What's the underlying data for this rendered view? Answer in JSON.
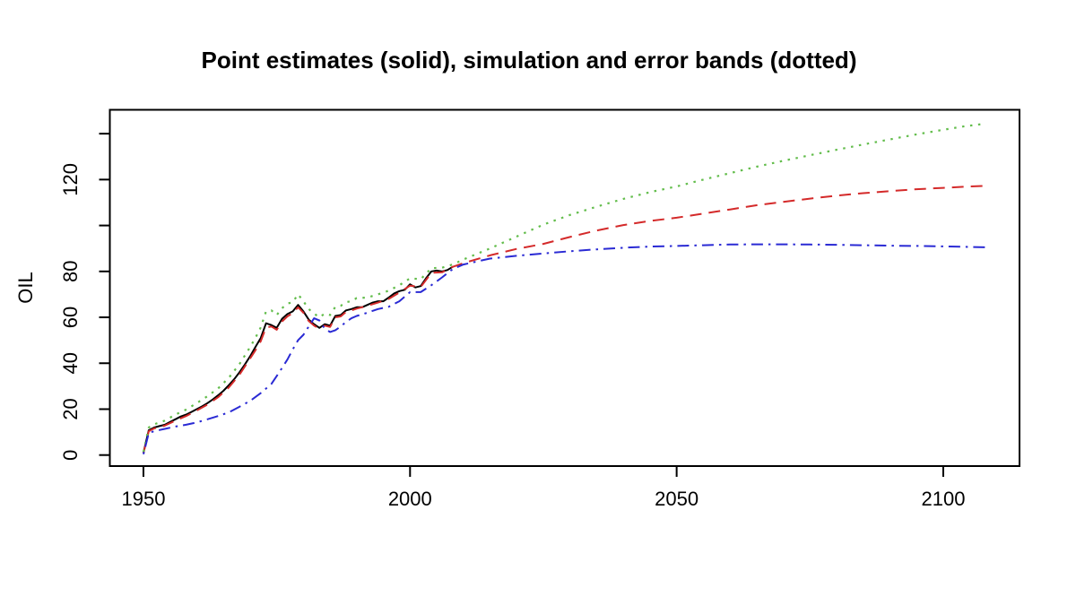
{
  "chart_data": {
    "type": "line",
    "title": "Point estimates (solid), simulation and error bands (dotted)",
    "xlabel": "",
    "ylabel": "OIL",
    "xlim": [
      1943.7,
      2114.3
    ],
    "ylim": [
      -4.8,
      150.4
    ],
    "x_ticks": [
      1950,
      2000,
      2050,
      2100
    ],
    "x_tick_labels": [
      "1950",
      "2000",
      "2050",
      "2100"
    ],
    "y_ticks": [
      0,
      20,
      40,
      60,
      80,
      100,
      120,
      140
    ],
    "y_tick_labels": [
      "0",
      "20",
      "40",
      "60",
      "80",
      "",
      "120",
      ""
    ],
    "grid": false,
    "legend_position": "none",
    "background": "#ffffff",
    "axis_color": "#000000",
    "series": [
      {
        "name": "point-estimates-historical",
        "label": "Point estimates (solid)",
        "style": "solid",
        "color": "#000000",
        "points": [
          [
            1950,
            1
          ],
          [
            1951,
            10.8
          ],
          [
            1952,
            12
          ],
          [
            1953,
            12.6
          ],
          [
            1954,
            13.2
          ],
          [
            1955,
            14.4
          ],
          [
            1956,
            15.6
          ],
          [
            1957,
            16.8
          ],
          [
            1958,
            17.6
          ],
          [
            1959,
            18.8
          ],
          [
            1960,
            20
          ],
          [
            1961,
            21.2
          ],
          [
            1962,
            22.6
          ],
          [
            1963,
            24.2
          ],
          [
            1964,
            26
          ],
          [
            1965,
            28
          ],
          [
            1966,
            30.4
          ],
          [
            1967,
            33
          ],
          [
            1968,
            36
          ],
          [
            1969,
            39.4
          ],
          [
            1970,
            43
          ],
          [
            1971,
            47
          ],
          [
            1972,
            51
          ],
          [
            1973,
            57.4
          ],
          [
            1974,
            56.6
          ],
          [
            1975,
            55.4
          ],
          [
            1976,
            59.4
          ],
          [
            1977,
            61.4
          ],
          [
            1978,
            62.6
          ],
          [
            1979,
            65.4
          ],
          [
            1980,
            62.6
          ],
          [
            1981,
            59
          ],
          [
            1982,
            57
          ],
          [
            1983,
            55.4
          ],
          [
            1984,
            57
          ],
          [
            1985,
            56.4
          ],
          [
            1986,
            60.6
          ],
          [
            1987,
            61
          ],
          [
            1988,
            63
          ],
          [
            1989,
            63.6
          ],
          [
            1990,
            64.4
          ],
          [
            1991,
            64.4
          ],
          [
            1992,
            65.4
          ],
          [
            1993,
            66.4
          ],
          [
            1994,
            67
          ],
          [
            1995,
            67
          ],
          [
            1996,
            68.6
          ],
          [
            1997,
            70.4
          ],
          [
            1998,
            71.4
          ],
          [
            1999,
            72
          ],
          [
            2000,
            74.4
          ],
          [
            2001,
            73
          ],
          [
            2002,
            73.6
          ],
          [
            2003,
            77
          ],
          [
            2004,
            80
          ],
          [
            2005,
            80.4
          ],
          [
            2006,
            80
          ],
          [
            2007,
            80.6
          ],
          [
            2008,
            82
          ]
        ]
      },
      {
        "name": "simulation-median",
        "label": "simulation (dashed red)",
        "style": "dashed",
        "color": "#d42a2a",
        "points": [
          [
            1950,
            0.8
          ],
          [
            1951,
            10.4
          ],
          [
            1952,
            11.6
          ],
          [
            1954,
            12.8
          ],
          [
            1956,
            15
          ],
          [
            1958,
            17
          ],
          [
            1960,
            19.4
          ],
          [
            1962,
            22
          ],
          [
            1964,
            25.2
          ],
          [
            1966,
            29.4
          ],
          [
            1968,
            35
          ],
          [
            1970,
            42
          ],
          [
            1971,
            45.6
          ],
          [
            1972,
            49.6
          ],
          [
            1973,
            55.6
          ],
          [
            1974,
            56
          ],
          [
            1975,
            54.6
          ],
          [
            1976,
            58.2
          ],
          [
            1977,
            60.4
          ],
          [
            1978,
            61.8
          ],
          [
            1979,
            64.4
          ],
          [
            1980,
            62
          ],
          [
            1981,
            58.4
          ],
          [
            1982,
            56.4
          ],
          [
            1983,
            55
          ],
          [
            1984,
            56.4
          ],
          [
            1985,
            55.8
          ],
          [
            1986,
            60
          ],
          [
            1987,
            60.4
          ],
          [
            1988,
            62.4
          ],
          [
            1989,
            63
          ],
          [
            1990,
            63.8
          ],
          [
            1992,
            65
          ],
          [
            1994,
            66.4
          ],
          [
            1996,
            68
          ],
          [
            1998,
            70.8
          ],
          [
            2000,
            73.8
          ],
          [
            2002,
            73.2
          ],
          [
            2004,
            79.4
          ],
          [
            2006,
            79.6
          ],
          [
            2008,
            82
          ],
          [
            2010,
            83.6
          ],
          [
            2015,
            87
          ],
          [
            2020,
            89.8
          ],
          [
            2025,
            92
          ],
          [
            2030,
            95
          ],
          [
            2035,
            97.8
          ],
          [
            2040,
            100.2
          ],
          [
            2045,
            102
          ],
          [
            2050,
            103.4
          ],
          [
            2055,
            105.2
          ],
          [
            2060,
            107
          ],
          [
            2065,
            108.8
          ],
          [
            2070,
            110.3
          ],
          [
            2075,
            111.7
          ],
          [
            2080,
            113
          ],
          [
            2085,
            114.1
          ],
          [
            2090,
            115
          ],
          [
            2095,
            115.8
          ],
          [
            2100,
            116.4
          ],
          [
            2104,
            116.9
          ],
          [
            2108,
            117.3
          ]
        ]
      },
      {
        "name": "upper-error-band",
        "label": "upper error band (dotted green)",
        "style": "dotted",
        "color": "#63bd4c",
        "points": [
          [
            1950,
            1.4
          ],
          [
            1951,
            12
          ],
          [
            1952,
            13.4
          ],
          [
            1954,
            15
          ],
          [
            1956,
            17.6
          ],
          [
            1958,
            19.8
          ],
          [
            1960,
            22.6
          ],
          [
            1962,
            25.6
          ],
          [
            1964,
            29
          ],
          [
            1966,
            33.6
          ],
          [
            1968,
            39.6
          ],
          [
            1970,
            47
          ],
          [
            1971,
            51
          ],
          [
            1972,
            55.6
          ],
          [
            1973,
            62.6
          ],
          [
            1974,
            63
          ],
          [
            1975,
            61
          ],
          [
            1976,
            64
          ],
          [
            1977,
            66
          ],
          [
            1978,
            66.6
          ],
          [
            1979,
            70
          ],
          [
            1980,
            67
          ],
          [
            1981,
            63.6
          ],
          [
            1982,
            61.6
          ],
          [
            1983,
            60
          ],
          [
            1984,
            61.6
          ],
          [
            1985,
            61
          ],
          [
            1986,
            64.6
          ],
          [
            1987,
            65
          ],
          [
            1988,
            66.6
          ],
          [
            1989,
            67
          ],
          [
            1990,
            68.4
          ],
          [
            1992,
            68.6
          ],
          [
            1994,
            70
          ],
          [
            1996,
            71.6
          ],
          [
            1998,
            74
          ],
          [
            2000,
            77
          ],
          [
            2002,
            76.6
          ],
          [
            2004,
            81.4
          ],
          [
            2006,
            81.6
          ],
          [
            2008,
            83
          ],
          [
            2010,
            85.2
          ],
          [
            2015,
            90
          ],
          [
            2020,
            95.2
          ],
          [
            2025,
            100.4
          ],
          [
            2030,
            104.6
          ],
          [
            2035,
            108.2
          ],
          [
            2040,
            111.6
          ],
          [
            2045,
            114.5
          ],
          [
            2050,
            117
          ],
          [
            2055,
            120
          ],
          [
            2060,
            122.8
          ],
          [
            2065,
            125.6
          ],
          [
            2070,
            128.2
          ],
          [
            2075,
            130.6
          ],
          [
            2080,
            133
          ],
          [
            2085,
            135.3
          ],
          [
            2090,
            137.5
          ],
          [
            2095,
            139.7
          ],
          [
            2100,
            141.7
          ],
          [
            2104,
            143.2
          ],
          [
            2108,
            144.4
          ]
        ]
      },
      {
        "name": "lower-error-band",
        "label": "lower error band (dash-dot blue)",
        "style": "dotdash",
        "color": "#2a2ad4",
        "points": [
          [
            1950,
            0.4
          ],
          [
            1951,
            9.6
          ],
          [
            1952,
            10.4
          ],
          [
            1954,
            11.4
          ],
          [
            1956,
            12.4
          ],
          [
            1958,
            13.2
          ],
          [
            1960,
            14.2
          ],
          [
            1962,
            15.6
          ],
          [
            1964,
            17
          ],
          [
            1966,
            18.6
          ],
          [
            1968,
            21
          ],
          [
            1970,
            23.6
          ],
          [
            1972,
            27
          ],
          [
            1974,
            31
          ],
          [
            1975,
            34.4
          ],
          [
            1976,
            38
          ],
          [
            1977,
            41.6
          ],
          [
            1978,
            46
          ],
          [
            1979,
            50
          ],
          [
            1980,
            52.4
          ],
          [
            1981,
            56
          ],
          [
            1982,
            59.6
          ],
          [
            1983,
            58.6
          ],
          [
            1984,
            55
          ],
          [
            1985,
            53.6
          ],
          [
            1986,
            54.4
          ],
          [
            1987,
            56
          ],
          [
            1988,
            58
          ],
          [
            1989,
            59.6
          ],
          [
            1990,
            60.6
          ],
          [
            1992,
            62
          ],
          [
            1994,
            63.6
          ],
          [
            1996,
            64.6
          ],
          [
            1998,
            67
          ],
          [
            2000,
            71
          ],
          [
            2002,
            71
          ],
          [
            2004,
            74
          ],
          [
            2006,
            77.4
          ],
          [
            2008,
            81
          ],
          [
            2010,
            83
          ],
          [
            2015,
            85.6
          ],
          [
            2020,
            86.8
          ],
          [
            2025,
            87.8
          ],
          [
            2030,
            88.8
          ],
          [
            2035,
            89.6
          ],
          [
            2040,
            90.3
          ],
          [
            2045,
            90.8
          ],
          [
            2050,
            91.1
          ],
          [
            2055,
            91.4
          ],
          [
            2060,
            91.7
          ],
          [
            2065,
            91.8
          ],
          [
            2070,
            91.8
          ],
          [
            2075,
            91.7
          ],
          [
            2080,
            91.6
          ],
          [
            2085,
            91.4
          ],
          [
            2090,
            91.2
          ],
          [
            2095,
            91.1
          ],
          [
            2100,
            90.9
          ],
          [
            2104,
            90.7
          ],
          [
            2108,
            90.5
          ]
        ]
      }
    ]
  }
}
